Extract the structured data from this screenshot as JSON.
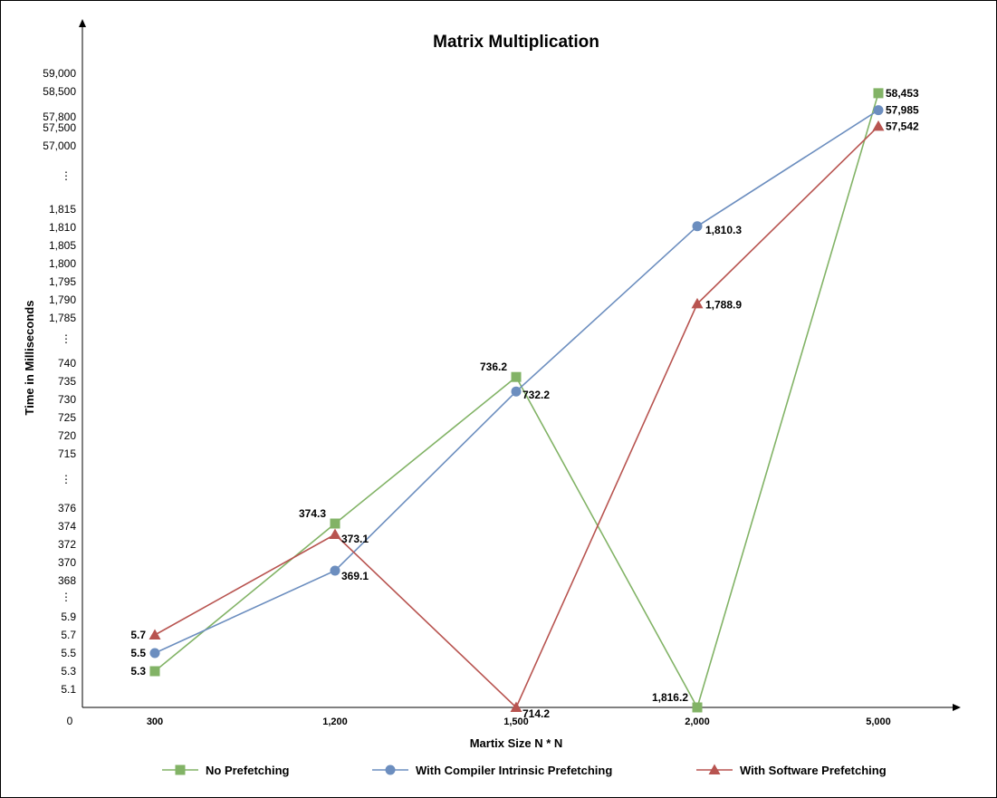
{
  "chart_data": {
    "type": "line",
    "title": "Matrix Multiplication",
    "xlabel": "Martix Size N * N",
    "ylabel": "Time in Milliseconds",
    "categories": [
      "300",
      "1,200",
      "1,500",
      "2,000",
      "5,000"
    ],
    "y_origin_label": "0",
    "y_ticks": [
      "5.1",
      "5.3",
      "5.5",
      "5.7",
      "5.9",
      "368",
      "370",
      "372",
      "374",
      "376",
      "715",
      "720",
      "725",
      "730",
      "735",
      "740",
      "1,785",
      "1,790",
      "1,795",
      "1,800",
      "1,805",
      "1,810",
      "1,815",
      "57,000",
      "57,500",
      "57,800",
      "58,500",
      "59,000"
    ],
    "y_breaks": [
      "⋮",
      "⋮",
      "⋮",
      "⋮"
    ],
    "grid": false,
    "legend_position": "bottom",
    "series": [
      {
        "name": "No Prefetching",
        "color": "#82b366",
        "marker": "square",
        "values": [
          5.3,
          374.3,
          736.2,
          1816.2,
          58453
        ],
        "labels": [
          "5.3",
          "374.3",
          "736.2",
          "1,816.2",
          "58,453"
        ]
      },
      {
        "name": "With Compiler Intrinsic Prefetching",
        "color": "#6c8ebf",
        "marker": "circle",
        "values": [
          5.5,
          369.1,
          732.2,
          1810.3,
          57985
        ],
        "labels": [
          "5.5",
          "369.1",
          "732.2",
          "1,810.3",
          "57,985"
        ]
      },
      {
        "name": "With Software Prefetching",
        "color": "#b85450",
        "marker": "triangle",
        "values": [
          5.7,
          373.1,
          714.2,
          1788.9,
          57542
        ],
        "labels": [
          "5.7",
          "373.1",
          "714.2",
          "1,788.9",
          "57,542"
        ]
      }
    ]
  }
}
